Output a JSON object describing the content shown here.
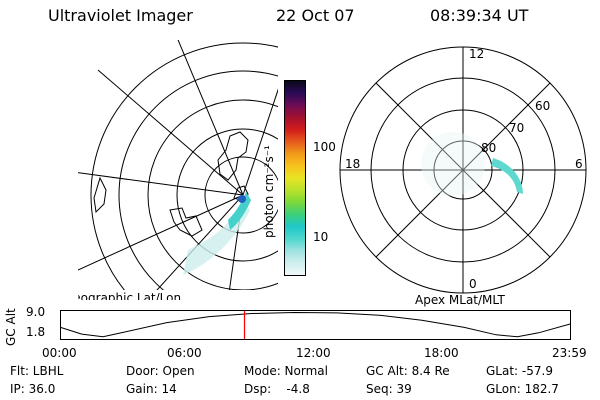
{
  "header": {
    "instrument": "Ultraviolet Imager",
    "date": "22 Oct 07",
    "time": "08:39:34 UT"
  },
  "geo_panel": {
    "label": "Geographic Lat/Lon"
  },
  "colorbar": {
    "unit_label": "photon cm⁻²s⁻¹",
    "ticks": [
      "100",
      "10"
    ],
    "colors": [
      "#f2f8f8",
      "#cfeeee",
      "#9fe2e0",
      "#4ed6cf",
      "#20c8c8",
      "#3cd07a",
      "#7dd83a",
      "#b8e22a",
      "#e8e424",
      "#f7c21e",
      "#f19a1a",
      "#e65a1c",
      "#d21c1c",
      "#a3102f",
      "#6d0c55",
      "#2a0a57",
      "#0a0a1a"
    ]
  },
  "mag_panel": {
    "label": "Apex MLat/MLT",
    "mlt_labels": {
      "top": "12",
      "left": "18",
      "right": "6",
      "bottom": "0"
    },
    "lat_labels": [
      "80",
      "70",
      "60"
    ]
  },
  "altitude_plot": {
    "axis_label": "GC Alt",
    "y_ticks": [
      "9.0",
      "1.8"
    ],
    "x_ticks": [
      "00:00",
      "06:00",
      "12:00",
      "18:00",
      "23:59"
    ],
    "orbit": [
      {
        "t": 0,
        "alt": 4.6
      },
      {
        "t": 1,
        "alt": 2.6
      },
      {
        "t": 2,
        "alt": 1.8
      },
      {
        "t": 3,
        "alt": 3.2
      },
      {
        "t": 5,
        "alt": 6.0
      },
      {
        "t": 7,
        "alt": 7.8
      },
      {
        "t": 9,
        "alt": 8.7
      },
      {
        "t": 11,
        "alt": 9.0
      },
      {
        "t": 13,
        "alt": 8.9
      },
      {
        "t": 15,
        "alt": 8.2
      },
      {
        "t": 17,
        "alt": 6.7
      },
      {
        "t": 19,
        "alt": 4.6
      },
      {
        "t": 20.5,
        "alt": 2.4
      },
      {
        "t": 21.5,
        "alt": 1.8
      },
      {
        "t": 22.5,
        "alt": 3.0
      },
      {
        "t": 23.98,
        "alt": 5.6
      }
    ],
    "current_time_hours": 8.66,
    "marker_color": "#ff0000"
  },
  "status": {
    "filter": "Flt: LBHL",
    "door": "Door: Open",
    "mode": "Mode: Normal",
    "gc_alt": "GC Alt: 8.4 Re",
    "glat": "GLat: -57.9",
    "ip": "IP: 36.0",
    "gain": "Gain: 14",
    "dsp": "Dsp:    -4.8",
    "seq": "Seq: 39",
    "glon": "GLon: 182.7"
  }
}
